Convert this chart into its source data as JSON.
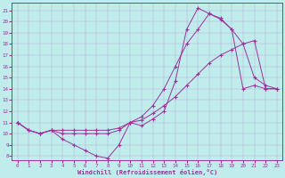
{
  "xlabel": "Windchill (Refroidissement éolien,°C)",
  "bg_color": "#c0ecec",
  "line_color": "#993399",
  "xlim_min": -0.5,
  "xlim_max": 23.5,
  "ylim_min": 7.6,
  "ylim_max": 21.7,
  "xticks": [
    0,
    1,
    2,
    3,
    4,
    5,
    6,
    7,
    8,
    9,
    10,
    11,
    12,
    13,
    14,
    15,
    16,
    17,
    18,
    19,
    20,
    21,
    22,
    23
  ],
  "yticks": [
    8,
    9,
    10,
    11,
    12,
    13,
    14,
    15,
    16,
    17,
    18,
    19,
    20,
    21
  ],
  "curve1_x": [
    0,
    1,
    2,
    3,
    4,
    5,
    6,
    7,
    8,
    9,
    10,
    11,
    12,
    13,
    14,
    15,
    16,
    17,
    18,
    19,
    20,
    21,
    22,
    23
  ],
  "curve1_y": [
    11.0,
    10.3,
    10.0,
    10.3,
    9.5,
    9.0,
    8.5,
    8.0,
    7.8,
    9.0,
    11.0,
    10.7,
    11.3,
    12.0,
    14.7,
    19.3,
    21.2,
    20.7,
    20.2,
    19.3,
    14.0,
    14.3,
    14.0,
    14.0
  ],
  "curve2_x": [
    0,
    1,
    2,
    3,
    4,
    5,
    6,
    7,
    8,
    9,
    10,
    11,
    12,
    13,
    14,
    15,
    16,
    17,
    18,
    19,
    20,
    21,
    22,
    23
  ],
  "curve2_y": [
    11.0,
    10.3,
    10.0,
    10.3,
    10.0,
    10.0,
    10.0,
    10.0,
    10.0,
    10.3,
    11.0,
    11.5,
    12.5,
    14.0,
    16.0,
    18.0,
    19.3,
    20.7,
    20.3,
    19.3,
    18.0,
    15.0,
    14.3,
    14.0
  ],
  "curve3_x": [
    0,
    1,
    2,
    3,
    4,
    5,
    6,
    7,
    8,
    9,
    10,
    11,
    12,
    13,
    14,
    15,
    16,
    17,
    18,
    19,
    20,
    21,
    22,
    23
  ],
  "curve3_y": [
    11.0,
    10.3,
    10.0,
    10.3,
    10.3,
    10.3,
    10.3,
    10.3,
    10.3,
    10.5,
    11.0,
    11.2,
    11.8,
    12.5,
    13.3,
    14.3,
    15.3,
    16.3,
    17.0,
    17.5,
    18.0,
    18.3,
    14.0,
    14.0
  ]
}
